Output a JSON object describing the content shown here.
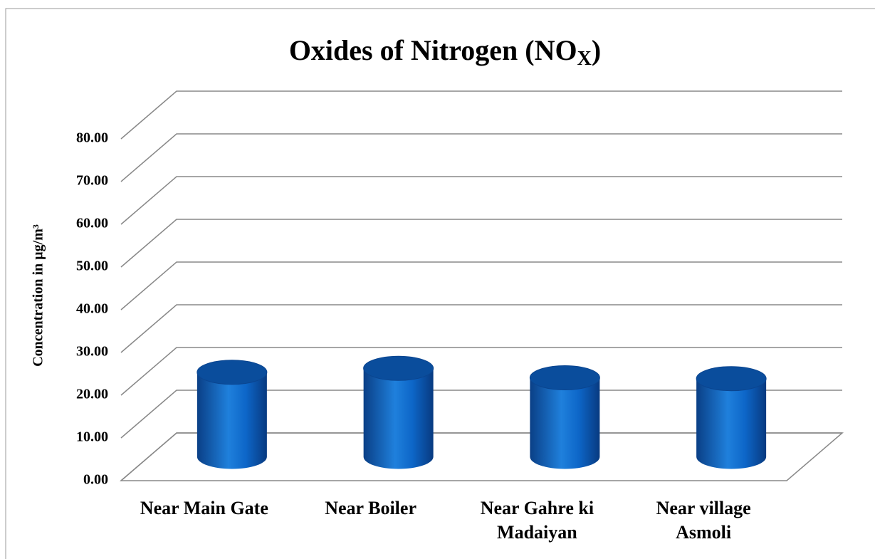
{
  "chart_data": {
    "type": "bar3d",
    "title": [
      "Oxides of Nitrogen (NO",
      "X",
      ")"
    ],
    "y_label": "Concentration in µg/m³",
    "categories": [
      "Near Main Gate",
      "Near Boiler",
      "Near Gahre ki Madaiyan",
      "Near village Asmoli"
    ],
    "values": [
      19.8,
      20.7,
      18.5,
      18.3
    ],
    "color": "#0b62c4",
    "ylim": [
      0,
      80
    ],
    "yticks": [
      {
        "value": 0,
        "label": "0.00"
      },
      {
        "value": 10,
        "label": "10.00"
      },
      {
        "value": 20,
        "label": "20.00"
      },
      {
        "value": 30,
        "label": "30.00"
      },
      {
        "value": 40,
        "label": "40.00"
      },
      {
        "value": 50,
        "label": "50.00"
      },
      {
        "value": 60,
        "label": "60.00"
      },
      {
        "value": 70,
        "label": "70.00"
      },
      {
        "value": 80,
        "label": "80.00"
      }
    ],
    "grid": true
  }
}
